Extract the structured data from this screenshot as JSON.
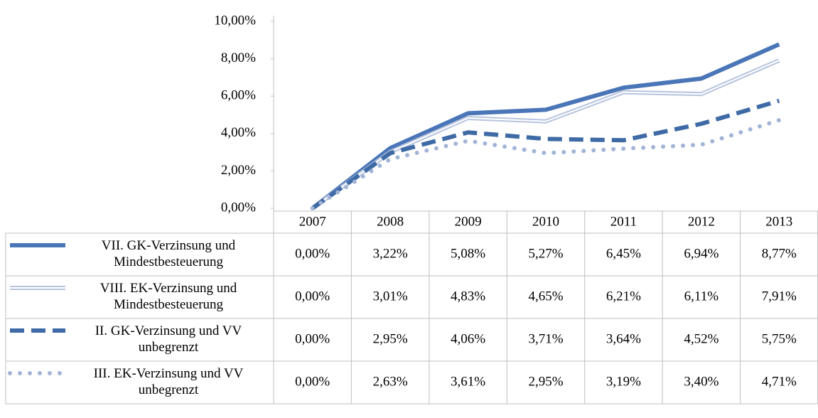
{
  "chart_data": {
    "type": "line",
    "categories": [
      "2007",
      "2008",
      "2009",
      "2010",
      "2011",
      "2012",
      "2013"
    ],
    "ylim": [
      0,
      10
    ],
    "yticks": [
      {
        "value": 0,
        "label": "0,00%"
      },
      {
        "value": 2,
        "label": "2,00%"
      },
      {
        "value": 4,
        "label": "4,00%"
      },
      {
        "value": 6,
        "label": "6,00%"
      },
      {
        "value": 8,
        "label": "8,00%"
      },
      {
        "value": 10,
        "label": "10,00%"
      }
    ],
    "data_table": true,
    "series": [
      {
        "name": "VII. GK-Verzinsung und Mindestbesteuerung",
        "color": "#4a76b8",
        "style": "solid",
        "values": [
          0,
          3.22,
          5.08,
          5.27,
          6.45,
          6.94,
          8.77
        ],
        "value_labels": [
          "0,00%",
          "3,22%",
          "5,08%",
          "5,27%",
          "6,45%",
          "6,94%",
          "8,77%"
        ]
      },
      {
        "name": "VIII. EK-Verzinsung und Mindestbesteuerung",
        "color": "#b7c4de",
        "style": "double",
        "values": [
          0,
          3.01,
          4.83,
          4.65,
          6.21,
          6.11,
          7.91
        ],
        "value_labels": [
          "0,00%",
          "3,01%",
          "4,83%",
          "4,65%",
          "6,21%",
          "6,11%",
          "7,91%"
        ]
      },
      {
        "name": "II. GK-Verzinsung und VV unbegrenzt",
        "color": "#3e6aa5",
        "style": "dashed",
        "values": [
          0,
          2.95,
          4.06,
          3.71,
          3.64,
          4.52,
          5.75
        ],
        "value_labels": [
          "0,00%",
          "2,95%",
          "4,06%",
          "3,71%",
          "3,64%",
          "4,52%",
          "5,75%"
        ]
      },
      {
        "name": "III. EK-Verzinsung und VV unbegrenzt",
        "color": "#a2b4d6",
        "style": "dotted",
        "values": [
          0,
          2.63,
          3.61,
          2.95,
          3.19,
          3.4,
          4.71
        ],
        "value_labels": [
          "0,00%",
          "2,63%",
          "3,61%",
          "2,95%",
          "3,19%",
          "3,40%",
          "4,71%"
        ]
      }
    ]
  }
}
